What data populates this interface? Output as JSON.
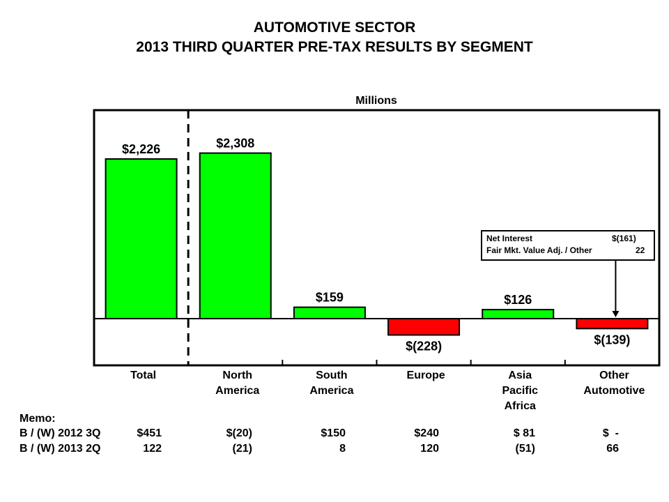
{
  "title_line1": "AUTOMOTIVE SECTOR",
  "title_line2": "2013 THIRD QUARTER PRE-TAX RESULTS BY SEGMENT",
  "units": "Millions",
  "colors": {
    "positive": "#00ff00",
    "negative": "#ff0000",
    "axis": "#000000"
  },
  "chart_data": {
    "type": "bar",
    "title": "2013 THIRD QUARTER PRE-TAX RESULTS BY SEGMENT",
    "ylabel": "Millions",
    "categories": [
      "Total",
      "North America",
      "South America",
      "Europe",
      "Asia Pacific Africa",
      "Other Automotive"
    ],
    "category_lines": [
      [
        "Total"
      ],
      [
        "North",
        "America"
      ],
      [
        "South",
        "America"
      ],
      [
        "Europe"
      ],
      [
        "Asia",
        "Pacific",
        "Africa"
      ],
      [
        "Other",
        "Automotive"
      ]
    ],
    "values": [
      2226,
      2308,
      159,
      -228,
      126,
      -139
    ],
    "value_labels": [
      "$2,226",
      "$2,308",
      "$159",
      "$(228)",
      "$126",
      "$(139)"
    ],
    "ylim": [
      -650,
      2700
    ],
    "grid": false,
    "separator_after": "Total"
  },
  "callout": {
    "rows": [
      {
        "label": "Net Interest",
        "value": "$(161)"
      },
      {
        "label": "Fair Mkt. Value Adj. / Other",
        "value": "22"
      }
    ],
    "points_to": "Other Automotive"
  },
  "memo": {
    "heading": "Memo:",
    "rows": [
      {
        "label": "B / (W) 2012 3Q",
        "values": [
          "$451",
          "$(20)",
          "$150",
          "$240",
          "$ 81",
          "$  -"
        ]
      },
      {
        "label": "B / (W) 2013 2Q",
        "values": [
          "122",
          "(21)",
          "8",
          "120",
          "(51)",
          "66"
        ]
      }
    ]
  }
}
